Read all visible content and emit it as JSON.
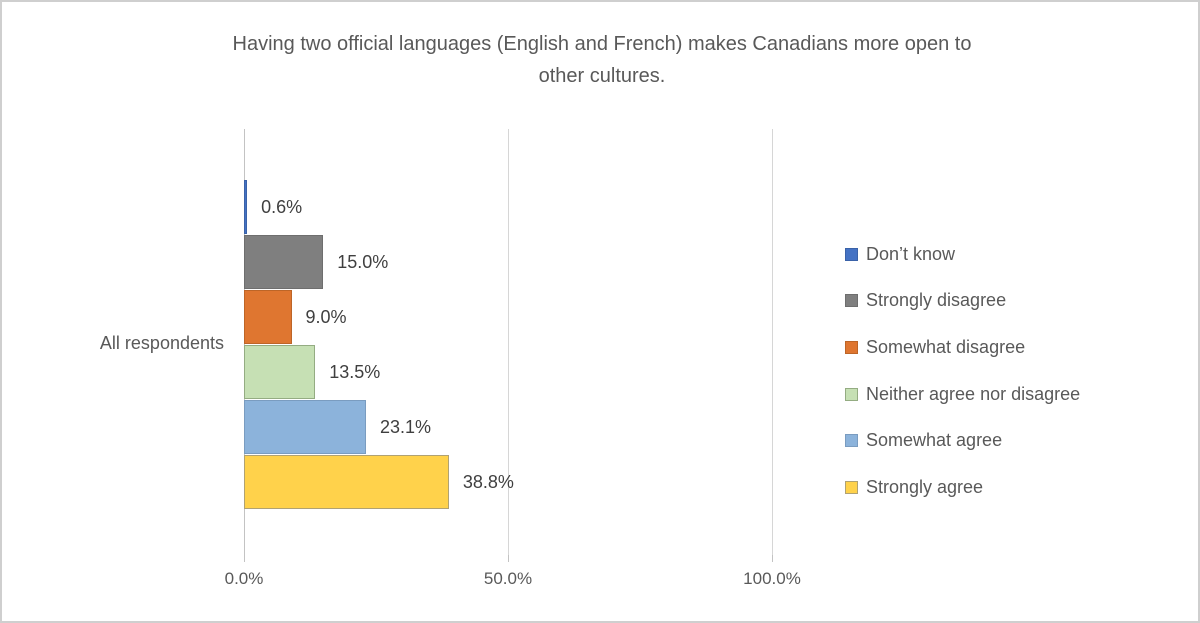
{
  "title": {
    "text": "Having two official languages (English and French) makes Canadians more open to other cultures.",
    "lines": [
      "Having two official languages (English and French) makes Canadians more open to",
      "other cultures."
    ]
  },
  "chart_data": {
    "type": "bar",
    "orientation": "horizontal",
    "title": "Having two official languages (English and French) makes Canadians more open to other cultures.",
    "categories": [
      "All respondents"
    ],
    "xlim": [
      0,
      100
    ],
    "grid": true,
    "legend_position": "right",
    "x_ticks": [
      {
        "label": "0.0%",
        "value": 0
      },
      {
        "label": "50.0%",
        "value": 50
      },
      {
        "label": "100.0%",
        "value": 100
      }
    ],
    "series": [
      {
        "name": "Don’t know",
        "values": [
          0.6
        ],
        "data_label": "0.6%",
        "fill": "#4472c4",
        "border": "#3a62a8"
      },
      {
        "name": "Strongly disagree",
        "values": [
          15.0
        ],
        "data_label": "15.0%",
        "fill": "#7f7f7f",
        "border": "#6e6e6e"
      },
      {
        "name": "Somewhat disagree",
        "values": [
          9.0
        ],
        "data_label": "9.0%",
        "fill": "#df7630",
        "border": "#bd6527"
      },
      {
        "name": "Neither agree nor disagree",
        "values": [
          13.5
        ],
        "data_label": "13.5%",
        "fill": "#c6e0b4",
        "border": "#94ac82"
      },
      {
        "name": "Somewhat agree",
        "values": [
          23.1
        ],
        "data_label": "23.1%",
        "fill": "#8cb3db",
        "border": "#7a9cc0"
      },
      {
        "name": "Strongly agree",
        "values": [
          38.8
        ],
        "data_label": "38.8%",
        "fill": "#ffd24b",
        "border": "#b0a273"
      }
    ]
  }
}
